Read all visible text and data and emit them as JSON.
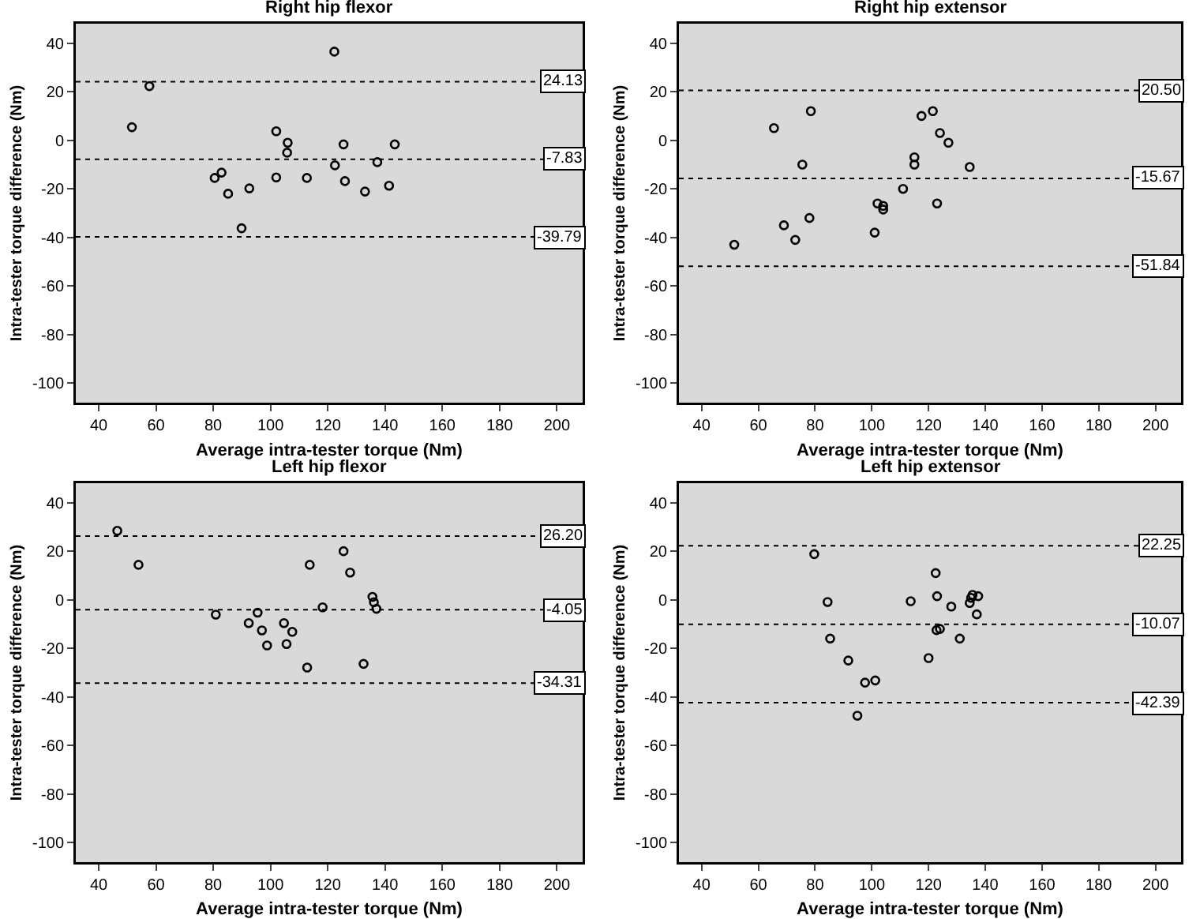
{
  "chart_data": [
    {
      "type": "scatter",
      "title": "Right hip flexor",
      "xlabel": "Average intra-tester torque (Nm)",
      "ylabel": "Intra-tester torque difference (Nm)",
      "marker": "circle",
      "grid": false,
      "xlim": [
        32,
        209
      ],
      "ylim": [
        -108,
        48
      ],
      "xticks": [
        40,
        60,
        80,
        100,
        120,
        140,
        160,
        180,
        200
      ],
      "yticks": [
        -100,
        -80,
        -60,
        -40,
        -20,
        0,
        20,
        40
      ],
      "x": [
        51.6,
        57.7,
        80.5,
        82.9,
        85.2,
        89.9,
        92.6,
        102,
        102,
        106,
        105.8,
        112.7,
        122.3,
        122.5,
        125.5,
        126,
        133,
        137.3,
        141.4,
        143.4
      ],
      "values": [
        5.4,
        22.3,
        -15.5,
        -13.3,
        -22,
        -36.2,
        -19.8,
        3.7,
        -15.3,
        -1,
        -5.1,
        -15.5,
        36.5,
        -10.3,
        -1.7,
        -16.8,
        -21.1,
        -9,
        -18.7,
        -1.7
      ],
      "color": "#000000",
      "ref_lines": [
        {
          "axis": "y",
          "value": 24.13,
          "label": "24.13",
          "line_style": "dotted"
        },
        {
          "axis": "y",
          "value": -7.83,
          "label": "-7.83",
          "line_style": "dotted"
        },
        {
          "axis": "y",
          "value": -39.79,
          "label": "-39.79",
          "line_style": "dotted"
        }
      ]
    },
    {
      "type": "scatter",
      "title": "Right hip extensor",
      "xlabel": "Average intra-tester torque (Nm)",
      "ylabel": "Intra-tester torque difference (Nm)",
      "marker": "circle",
      "grid": false,
      "xlim": [
        32,
        209
      ],
      "ylim": [
        -108,
        48
      ],
      "xticks": [
        40,
        60,
        80,
        100,
        120,
        140,
        160,
        180,
        200
      ],
      "yticks": [
        -100,
        -80,
        -60,
        -40,
        -20,
        0,
        20,
        40
      ],
      "x": [
        51.5,
        65.5,
        69,
        73,
        75.5,
        78,
        78.5,
        101,
        102,
        104,
        104,
        111,
        115,
        115,
        117.5,
        121.5,
        123,
        124,
        127,
        134.5
      ],
      "values": [
        -43,
        5,
        -35,
        -41,
        -10,
        -32,
        12,
        -38,
        -26,
        -27,
        -28.5,
        -20,
        -7,
        -10,
        10,
        12,
        -26,
        3,
        -1,
        -11
      ],
      "color": "#000000",
      "ref_lines": [
        {
          "axis": "y",
          "value": 20.5,
          "label": "20.50",
          "line_style": "dotted"
        },
        {
          "axis": "y",
          "value": -15.67,
          "label": "-15.67",
          "line_style": "dotted"
        },
        {
          "axis": "y",
          "value": -51.84,
          "label": "-51.84",
          "line_style": "dotted"
        }
      ]
    },
    {
      "type": "scatter",
      "title": "Left hip flexor",
      "xlabel": "Average intra-tester torque (Nm)",
      "ylabel": "Intra-tester torque difference (Nm)",
      "marker": "circle",
      "grid": false,
      "xlim": [
        32,
        209
      ],
      "ylim": [
        -108,
        48
      ],
      "xticks": [
        40,
        60,
        80,
        100,
        120,
        140,
        160,
        180,
        200
      ],
      "yticks": [
        -100,
        -80,
        -60,
        -40,
        -20,
        0,
        20,
        40
      ],
      "x": [
        46.5,
        53.9,
        80.9,
        92.4,
        95.5,
        97,
        98.8,
        104.7,
        105.6,
        107.6,
        112.8,
        113.7,
        118.2,
        125.5,
        127.8,
        132.5,
        135.6,
        136.1,
        137
      ],
      "values": [
        28.4,
        14.4,
        -6.1,
        -9.6,
        -5.3,
        -12.6,
        -18.8,
        -9.6,
        -18.2,
        -13.2,
        -27.9,
        14.4,
        -3.1,
        20,
        11.2,
        -26.4,
        1.2,
        -1,
        -3.7
      ],
      "color": "#000000",
      "ref_lines": [
        {
          "axis": "y",
          "value": 26.2,
          "label": "26.20",
          "line_style": "dotted"
        },
        {
          "axis": "y",
          "value": -4.05,
          "label": "-4.05",
          "line_style": "dotted"
        },
        {
          "axis": "y",
          "value": -34.31,
          "label": "-34.31",
          "line_style": "dotted"
        }
      ]
    },
    {
      "type": "scatter",
      "title": "Left hip extensor",
      "xlabel": "Average intra-tester torque (Nm)",
      "ylabel": "Intra-tester torque difference (Nm)",
      "marker": "circle",
      "grid": false,
      "xlim": [
        32,
        209
      ],
      "ylim": [
        -108,
        48
      ],
      "xticks": [
        40,
        60,
        80,
        100,
        120,
        140,
        160,
        180,
        200
      ],
      "yticks": [
        -100,
        -80,
        -60,
        -40,
        -20,
        0,
        20,
        40
      ],
      "x": [
        79.7,
        84.4,
        85.3,
        91.7,
        94.9,
        97.6,
        101.2,
        113.7,
        120,
        122.5,
        123,
        122.8,
        124,
        128,
        131,
        134.5,
        135,
        135.5,
        137.5,
        137
      ],
      "values": [
        18.8,
        -0.9,
        -16,
        -25,
        -47.7,
        -34.1,
        -33.2,
        -0.6,
        -24,
        11,
        1.5,
        -12.5,
        -12,
        -2.8,
        -16,
        -1.3,
        0.8,
        2,
        1.5,
        -6
      ],
      "color": "#000000",
      "ref_lines": [
        {
          "axis": "y",
          "value": 22.25,
          "label": "22.25",
          "line_style": "dotted"
        },
        {
          "axis": "y",
          "value": -10.07,
          "label": "-10.07",
          "line_style": "dotted"
        },
        {
          "axis": "y",
          "value": -42.39,
          "label": "-42.39",
          "line_style": "dotted"
        }
      ]
    }
  ]
}
